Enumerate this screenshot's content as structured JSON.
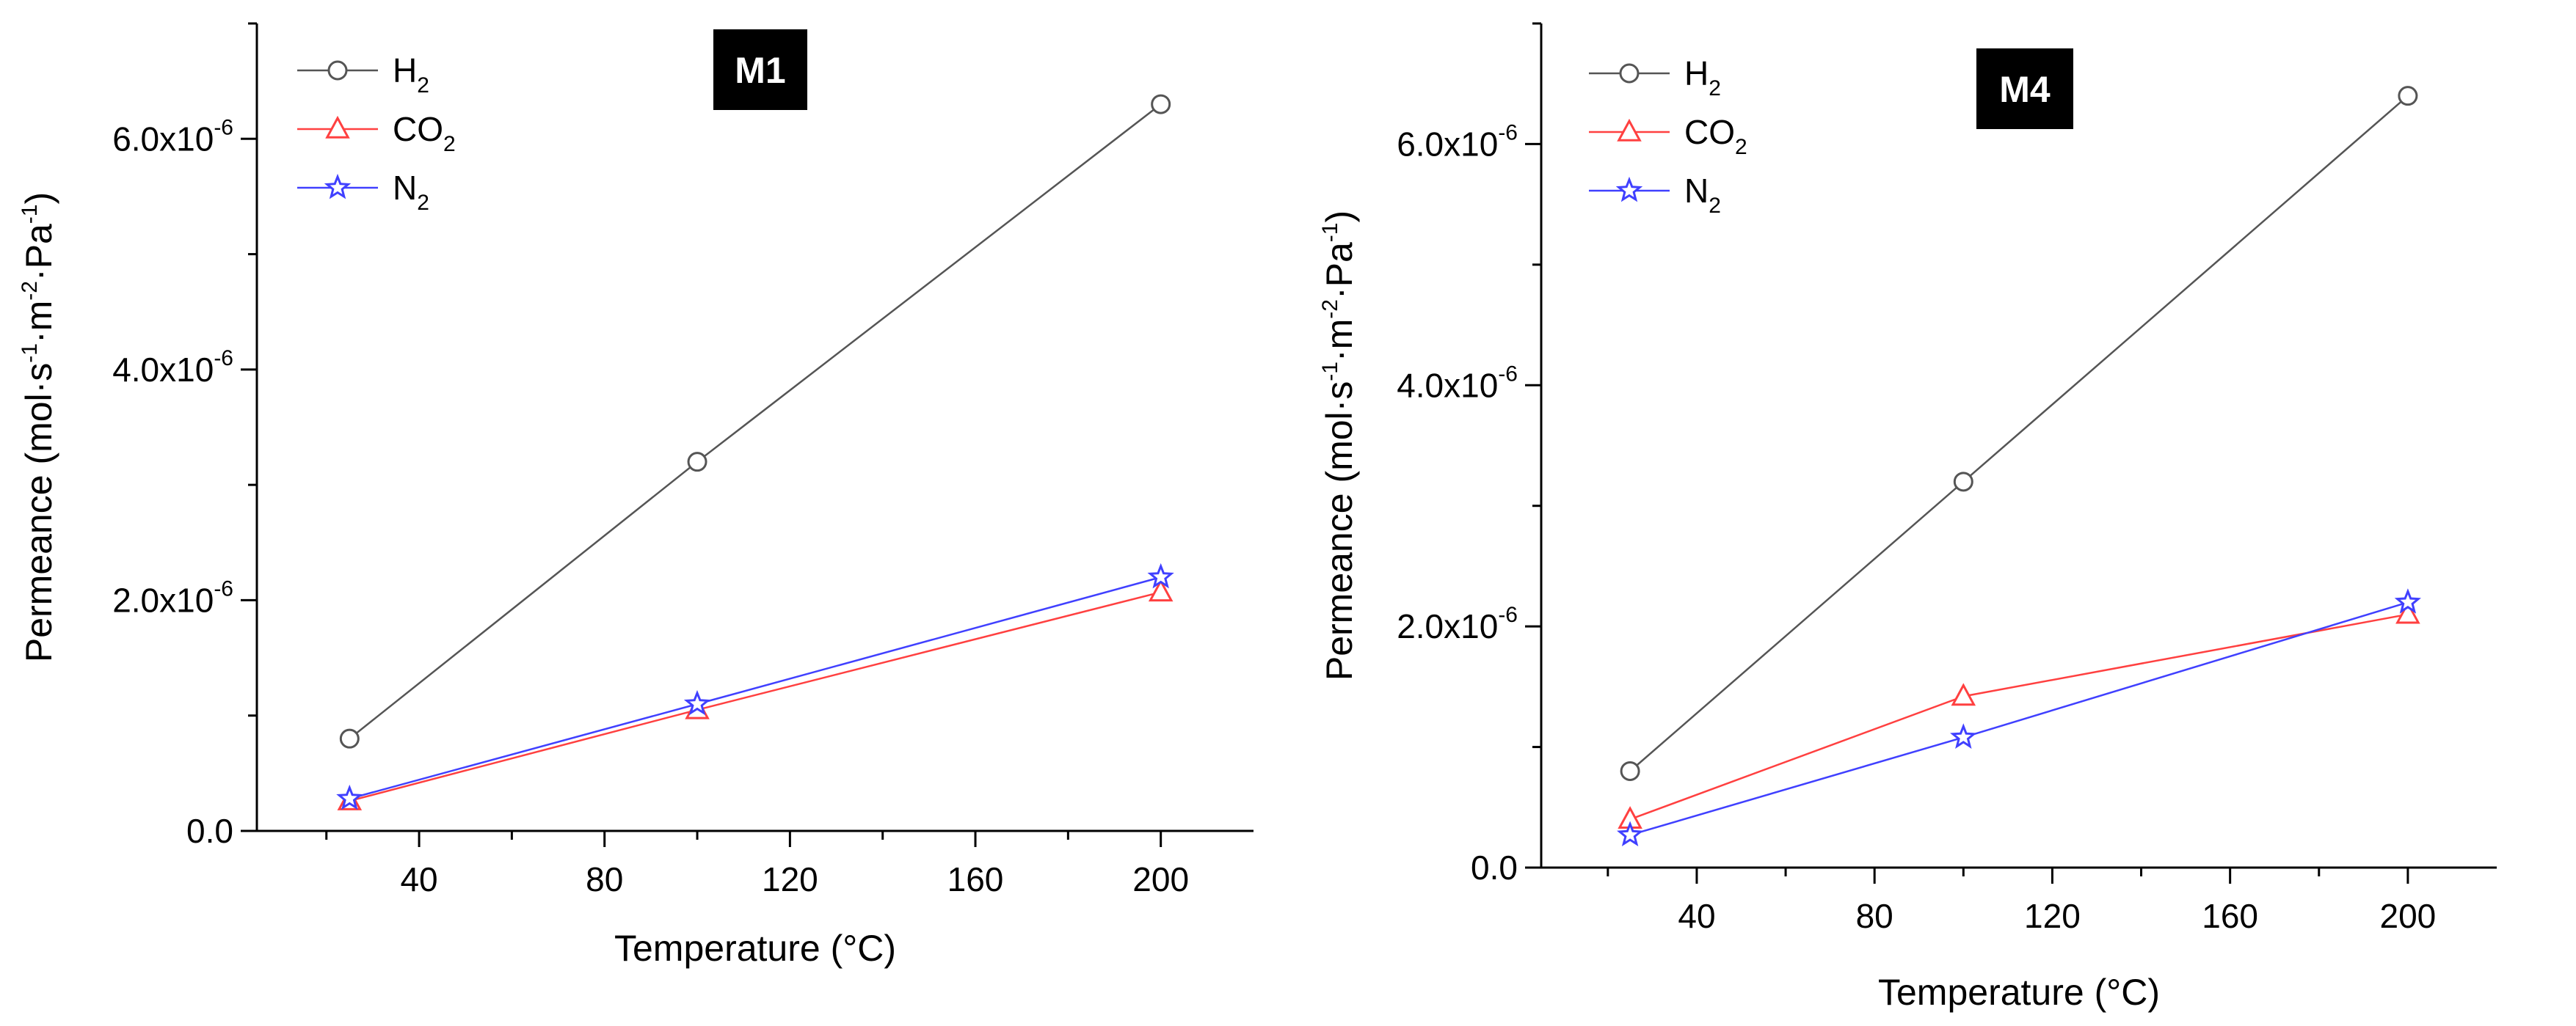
{
  "chart_data": [
    {
      "type": "line",
      "tag": "M1",
      "xlabel": "Temperature (°C)",
      "ylabel_parts": [
        "Permeance (mol·s",
        "-1",
        "·m",
        "-2",
        "·Pa",
        "-1",
        ")"
      ],
      "xlim": [
        5,
        220
      ],
      "ylim": [
        0,
        7e-06
      ],
      "xticks": [
        40,
        80,
        120,
        160,
        200
      ],
      "xtick_labels": [
        "40",
        "80",
        "120",
        "160",
        "200"
      ],
      "yticks": [
        0,
        2e-06,
        4e-06,
        6e-06
      ],
      "ytick_labels": [
        {
          "base": "0.0",
          "exp": ""
        },
        {
          "base": "2.0x10",
          "exp": "-6"
        },
        {
          "base": "4.0x10",
          "exp": "-6"
        },
        {
          "base": "6.0x10",
          "exp": "-6"
        }
      ],
      "grid": false,
      "legend_position": "top-left",
      "series": [
        {
          "name": "H",
          "sub": "2",
          "color": "#555555",
          "marker": "circle",
          "x": [
            25,
            100,
            200
          ],
          "y": [
            8e-07,
            3.2e-06,
            6.3e-06
          ]
        },
        {
          "name": "CO",
          "sub": "2",
          "color": "#ff4040",
          "marker": "triangle",
          "x": [
            25,
            100,
            200
          ],
          "y": [
            2.6e-07,
            1.05e-06,
            2.07e-06
          ]
        },
        {
          "name": "N",
          "sub": "2",
          "color": "#4040ff",
          "marker": "star",
          "x": [
            25,
            100,
            200
          ],
          "y": [
            2.8e-07,
            1.1e-06,
            2.2e-06
          ]
        }
      ]
    },
    {
      "type": "line",
      "tag": "M4",
      "xlabel": "Temperature (°C)",
      "ylabel_parts": [
        "Permeance (mol·s",
        "-1",
        "·m",
        "-2",
        "·Pa",
        "-1",
        ")"
      ],
      "xlim": [
        5,
        220
      ],
      "ylim": [
        0,
        7e-06
      ],
      "xticks": [
        40,
        80,
        120,
        160,
        200
      ],
      "xtick_labels": [
        "40",
        "80",
        "120",
        "160",
        "200"
      ],
      "yticks": [
        0,
        2e-06,
        4e-06,
        6e-06
      ],
      "ytick_labels": [
        {
          "base": "0.0",
          "exp": ""
        },
        {
          "base": "2.0x10",
          "exp": "-6"
        },
        {
          "base": "4.0x10",
          "exp": "-6"
        },
        {
          "base": "6.0x10",
          "exp": "-6"
        }
      ],
      "grid": false,
      "legend_position": "top-left",
      "series": [
        {
          "name": "H",
          "sub": "2",
          "color": "#555555",
          "marker": "circle",
          "x": [
            25,
            100,
            200
          ],
          "y": [
            8e-07,
            3.2e-06,
            6.4e-06
          ]
        },
        {
          "name": "CO",
          "sub": "2",
          "color": "#ff4040",
          "marker": "triangle",
          "x": [
            25,
            100,
            200
          ],
          "y": [
            4e-07,
            1.42e-06,
            2.1e-06
          ]
        },
        {
          "name": "N",
          "sub": "2",
          "color": "#4040ff",
          "marker": "star",
          "x": [
            25,
            100,
            200
          ],
          "y": [
            2.7e-07,
            1.08e-06,
            2.2e-06
          ]
        }
      ]
    }
  ]
}
